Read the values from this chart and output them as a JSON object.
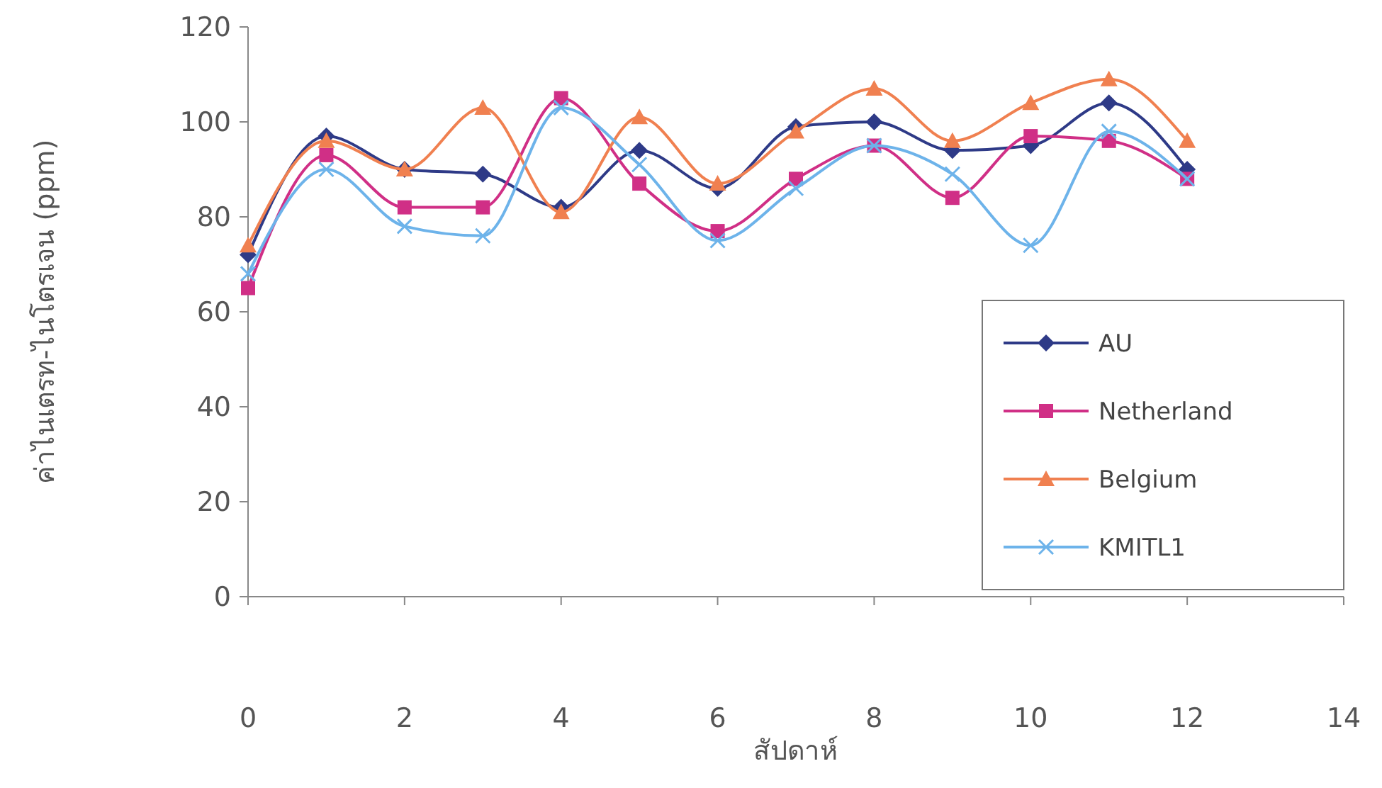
{
  "chart_data": {
    "type": "line",
    "xlabel": "สัปดาห์",
    "ylabel": "ค่าไนเตรท-ไนโตรเจน (ppm)",
    "x": [
      0,
      1,
      2,
      3,
      4,
      5,
      6,
      7,
      8,
      9,
      10,
      11,
      12
    ],
    "xlim": [
      0,
      14
    ],
    "xticks": [
      0,
      2,
      4,
      6,
      8,
      10,
      12,
      14
    ],
    "ylim": [
      0,
      120
    ],
    "yticks": [
      0,
      20,
      40,
      60,
      80,
      100,
      120
    ],
    "legend": "bottom right",
    "grid": false,
    "series": [
      {
        "name": "AU",
        "color": "#2e3a87",
        "marker": "diamond",
        "values": [
          72,
          97,
          90,
          89,
          82,
          94,
          86,
          99,
          100,
          94,
          95,
          104,
          90
        ]
      },
      {
        "name": "Netherland",
        "color": "#d02f86",
        "marker": "square",
        "values": [
          65,
          93,
          82,
          82,
          105,
          87,
          77,
          88,
          95,
          84,
          97,
          96,
          88
        ]
      },
      {
        "name": "Belgium",
        "color": "#f08050",
        "marker": "triangle",
        "values": [
          74,
          96,
          90,
          103,
          81,
          101,
          87,
          98,
          107,
          96,
          104,
          109,
          96
        ]
      },
      {
        "name": "KMITL1",
        "color": "#6db3ea",
        "marker": "cross",
        "values": [
          68,
          90,
          78,
          76,
          103,
          91,
          75,
          86,
          95,
          89,
          74,
          98,
          88
        ]
      }
    ]
  }
}
